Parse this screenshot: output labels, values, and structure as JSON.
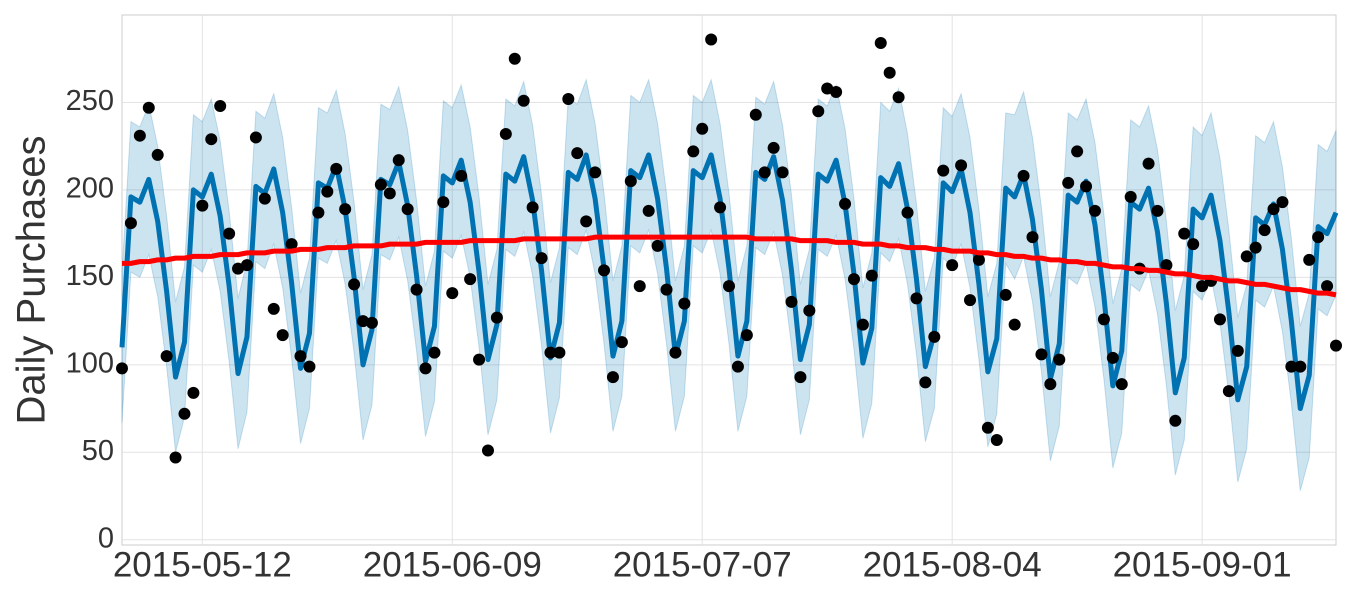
{
  "chart_data": {
    "type": "line",
    "y_label": "Daily Purchases",
    "x": [
      "2015-05-03",
      "2015-05-04",
      "2015-05-05",
      "2015-05-06",
      "2015-05-07",
      "2015-05-08",
      "2015-05-09",
      "2015-05-10",
      "2015-05-11",
      "2015-05-12",
      "2015-05-13",
      "2015-05-14",
      "2015-05-15",
      "2015-05-16",
      "2015-05-17",
      "2015-05-18",
      "2015-05-19",
      "2015-05-20",
      "2015-05-21",
      "2015-05-22",
      "2015-05-23",
      "2015-05-24",
      "2015-05-25",
      "2015-05-26",
      "2015-05-27",
      "2015-05-28",
      "2015-05-29",
      "2015-05-30",
      "2015-05-31",
      "2015-06-01",
      "2015-06-02",
      "2015-06-03",
      "2015-06-04",
      "2015-06-05",
      "2015-06-06",
      "2015-06-07",
      "2015-06-08",
      "2015-06-09",
      "2015-06-10",
      "2015-06-11",
      "2015-06-12",
      "2015-06-13",
      "2015-06-14",
      "2015-06-15",
      "2015-06-16",
      "2015-06-17",
      "2015-06-18",
      "2015-06-19",
      "2015-06-20",
      "2015-06-21",
      "2015-06-22",
      "2015-06-23",
      "2015-06-24",
      "2015-06-25",
      "2015-06-26",
      "2015-06-27",
      "2015-06-28",
      "2015-06-29",
      "2015-06-30",
      "2015-07-01",
      "2015-07-02",
      "2015-07-03",
      "2015-07-04",
      "2015-07-05",
      "2015-07-06",
      "2015-07-07",
      "2015-07-08",
      "2015-07-09",
      "2015-07-10",
      "2015-07-11",
      "2015-07-12",
      "2015-07-13",
      "2015-07-14",
      "2015-07-15",
      "2015-07-16",
      "2015-07-17",
      "2015-07-18",
      "2015-07-19",
      "2015-07-20",
      "2015-07-21",
      "2015-07-22",
      "2015-07-23",
      "2015-07-24",
      "2015-07-25",
      "2015-07-26",
      "2015-07-27",
      "2015-07-28",
      "2015-07-29",
      "2015-07-30",
      "2015-07-31",
      "2015-08-01",
      "2015-08-02",
      "2015-08-03",
      "2015-08-04",
      "2015-08-05",
      "2015-08-06",
      "2015-08-07",
      "2015-08-08",
      "2015-08-09",
      "2015-08-10",
      "2015-08-11",
      "2015-08-12",
      "2015-08-13",
      "2015-08-14",
      "2015-08-15",
      "2015-08-16",
      "2015-08-17",
      "2015-08-18",
      "2015-08-19",
      "2015-08-20",
      "2015-08-21",
      "2015-08-22",
      "2015-08-23",
      "2015-08-24",
      "2015-08-25",
      "2015-08-26",
      "2015-08-27",
      "2015-08-28",
      "2015-08-29",
      "2015-08-30",
      "2015-08-31",
      "2015-09-01",
      "2015-09-02",
      "2015-09-03",
      "2015-09-04",
      "2015-09-05",
      "2015-09-06",
      "2015-09-07",
      "2015-09-08",
      "2015-09-09",
      "2015-09-10",
      "2015-09-11",
      "2015-09-12",
      "2015-09-13",
      "2015-09-14",
      "2015-09-15",
      "2015-09-16"
    ],
    "series": [
      {
        "type": "scatter",
        "color": "#000000",
        "values": [
          98,
          181,
          231,
          247,
          220,
          105,
          47,
          72,
          84,
          191,
          229,
          248,
          175,
          155,
          157,
          230,
          195,
          132,
          117,
          169,
          105,
          99,
          187,
          199,
          212,
          189,
          146,
          125,
          124,
          203,
          198,
          217,
          189,
          143,
          98,
          107,
          193,
          141,
          208,
          149,
          103,
          51,
          127,
          232,
          275,
          251,
          190,
          161,
          107,
          107,
          252,
          221,
          182,
          210,
          154,
          93,
          113,
          205,
          145,
          188,
          168,
          143,
          107,
          135,
          222,
          235,
          286,
          190,
          145,
          99,
          117,
          243,
          210,
          224,
          210,
          136,
          93,
          131,
          245,
          258,
          256,
          192,
          149,
          123,
          151,
          284,
          267,
          253,
          187,
          138,
          90,
          116,
          211,
          157,
          214,
          137,
          160,
          64,
          57,
          140,
          123,
          208,
          173,
          106,
          89,
          103,
          204,
          222,
          202,
          188,
          126,
          104,
          89,
          196,
          155,
          215,
          188,
          157,
          68,
          175,
          169,
          145,
          148,
          126,
          85,
          108,
          162,
          167,
          177,
          189,
          193,
          99,
          99,
          160,
          173,
          145,
          111
        ]
      },
      {
        "type": "line",
        "color": "#0072B2",
        "values": [
          110,
          196,
          193,
          206,
          182,
          142,
          93,
          113,
          200,
          196,
          209,
          185,
          145,
          95,
          116,
          202,
          198,
          212,
          187,
          147,
          98,
          118,
          204,
          201,
          214,
          189,
          150,
          100,
          120,
          206,
          203,
          216,
          191,
          151,
          102,
          122,
          208,
          204,
          217,
          193,
          153,
          103,
          123,
          209,
          205,
          219,
          194,
          154,
          104,
          124,
          210,
          206,
          220,
          195,
          155,
          105,
          125,
          211,
          207,
          220,
          195,
          155,
          105,
          125,
          211,
          207,
          220,
          195,
          155,
          105,
          125,
          210,
          206,
          219,
          194,
          154,
          103,
          123,
          209,
          205,
          217,
          192,
          152,
          101,
          121,
          207,
          202,
          215,
          189,
          149,
          99,
          118,
          204,
          199,
          212,
          187,
          146,
          96,
          115,
          201,
          196,
          209,
          183,
          143,
          92,
          112,
          197,
          193,
          205,
          180,
          139,
          88,
          108,
          193,
          189,
          201,
          176,
          135,
          84,
          104,
          189,
          184,
          197,
          171,
          130,
          80,
          99,
          184,
          180,
          192,
          166,
          125,
          75,
          94,
          179,
          175,
          187
        ],
        "lower": [
          67,
          153,
          150,
          163,
          139,
          99,
          50,
          70,
          157,
          153,
          166,
          142,
          102,
          52,
          73,
          159,
          155,
          169,
          144,
          104,
          55,
          75,
          161,
          158,
          171,
          146,
          107,
          57,
          77,
          163,
          160,
          173,
          148,
          108,
          59,
          79,
          165,
          161,
          174,
          150,
          110,
          60,
          80,
          166,
          162,
          176,
          151,
          111,
          61,
          81,
          167,
          163,
          177,
          152,
          112,
          62,
          82,
          168,
          164,
          177,
          152,
          112,
          62,
          82,
          168,
          164,
          177,
          152,
          112,
          62,
          82,
          167,
          163,
          176,
          151,
          111,
          60,
          80,
          166,
          162,
          174,
          149,
          109,
          58,
          78,
          164,
          159,
          172,
          146,
          106,
          56,
          75,
          161,
          156,
          169,
          144,
          103,
          53,
          72,
          158,
          149,
          162,
          136,
          96,
          45,
          65,
          150,
          146,
          158,
          133,
          92,
          41,
          61,
          146,
          142,
          154,
          129,
          88,
          37,
          57,
          142,
          137,
          150,
          124,
          83,
          33,
          52,
          137,
          133,
          145,
          119,
          78,
          28,
          47,
          132,
          128,
          140
        ],
        "upper": [
          153,
          239,
          236,
          249,
          225,
          185,
          136,
          156,
          243,
          239,
          252,
          228,
          188,
          138,
          159,
          245,
          241,
          255,
          230,
          190,
          141,
          161,
          247,
          244,
          257,
          232,
          193,
          143,
          163,
          249,
          246,
          259,
          234,
          194,
          145,
          165,
          251,
          247,
          260,
          236,
          196,
          146,
          166,
          252,
          248,
          262,
          237,
          197,
          147,
          167,
          253,
          249,
          263,
          238,
          198,
          148,
          168,
          254,
          250,
          263,
          238,
          198,
          148,
          168,
          254,
          250,
          263,
          238,
          198,
          148,
          168,
          253,
          249,
          262,
          237,
          197,
          146,
          166,
          252,
          248,
          260,
          235,
          195,
          144,
          164,
          250,
          245,
          258,
          232,
          192,
          142,
          161,
          247,
          242,
          255,
          230,
          189,
          139,
          158,
          244,
          243,
          256,
          230,
          190,
          139,
          159,
          244,
          240,
          252,
          227,
          186,
          135,
          155,
          240,
          236,
          248,
          223,
          182,
          131,
          151,
          236,
          231,
          244,
          218,
          177,
          127,
          146,
          231,
          227,
          239,
          213,
          172,
          122,
          141,
          226,
          222,
          234
        ]
      },
      {
        "type": "line",
        "color": "#FF0000",
        "values": [
          158,
          158,
          159,
          159,
          160,
          160,
          161,
          161,
          162,
          162,
          162,
          163,
          163,
          163,
          164,
          164,
          164,
          165,
          165,
          165,
          166,
          166,
          166,
          167,
          167,
          167,
          168,
          168,
          168,
          168,
          169,
          169,
          169,
          169,
          170,
          170,
          170,
          170,
          170,
          171,
          171,
          171,
          171,
          171,
          171,
          172,
          172,
          172,
          172,
          172,
          172,
          172,
          172,
          173,
          173,
          173,
          173,
          173,
          173,
          173,
          173,
          173,
          173,
          173,
          173,
          173,
          173,
          173,
          173,
          173,
          173,
          172,
          172,
          172,
          172,
          172,
          171,
          171,
          171,
          171,
          170,
          170,
          170,
          169,
          169,
          169,
          168,
          168,
          167,
          167,
          167,
          166,
          166,
          165,
          165,
          165,
          164,
          164,
          163,
          163,
          162,
          162,
          161,
          161,
          160,
          160,
          159,
          159,
          158,
          158,
          157,
          156,
          156,
          155,
          155,
          154,
          154,
          153,
          152,
          152,
          151,
          150,
          150,
          149,
          148,
          148,
          147,
          146,
          146,
          145,
          144,
          143,
          143,
          142,
          141,
          141,
          140
        ]
      }
    ],
    "xlim": [
      "2015-05-03",
      "2015-09-16"
    ],
    "xticks": [
      "2015-05-12",
      "2015-06-09",
      "2015-07-07",
      "2015-08-04",
      "2015-09-01"
    ],
    "ylim": [
      -3,
      300
    ],
    "yticks": [
      0,
      50,
      100,
      150,
      200,
      250
    ],
    "grid": true,
    "band_opacity": 0.2
  }
}
